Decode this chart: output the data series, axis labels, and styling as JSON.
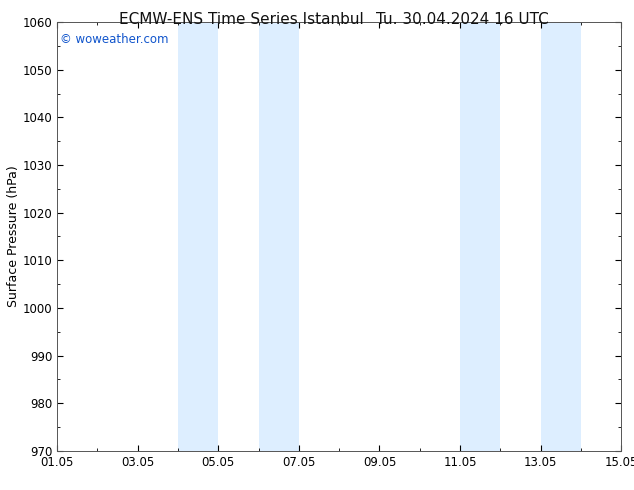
{
  "title_left": "ECMW-ENS Time Series Istanbul",
  "title_right": "Tu. 30.04.2024 16 UTC",
  "ylabel": "Surface Pressure (hPa)",
  "ylim": [
    970,
    1060
  ],
  "yticks": [
    970,
    980,
    990,
    1000,
    1010,
    1020,
    1030,
    1040,
    1050,
    1060
  ],
  "xlim_start": 0,
  "xlim_end": 14,
  "xtick_positions": [
    0,
    2,
    4,
    6,
    8,
    10,
    12,
    14
  ],
  "xtick_labels": [
    "01.05",
    "03.05",
    "05.05",
    "07.05",
    "09.05",
    "11.05",
    "13.05",
    "15.05"
  ],
  "shaded_bands": [
    {
      "x_start": 3.0,
      "x_end": 4.0
    },
    {
      "x_start": 5.0,
      "x_end": 6.0
    },
    {
      "x_start": 10.0,
      "x_end": 11.0
    },
    {
      "x_start": 12.0,
      "x_end": 13.0
    }
  ],
  "shaded_color": "#ddeeff",
  "background_color": "#ffffff",
  "watermark_text": "© woweather.com",
  "watermark_color": "#1155cc",
  "title_color": "#111111",
  "title_fontsize": 11,
  "tick_fontsize": 8.5,
  "ylabel_fontsize": 9
}
